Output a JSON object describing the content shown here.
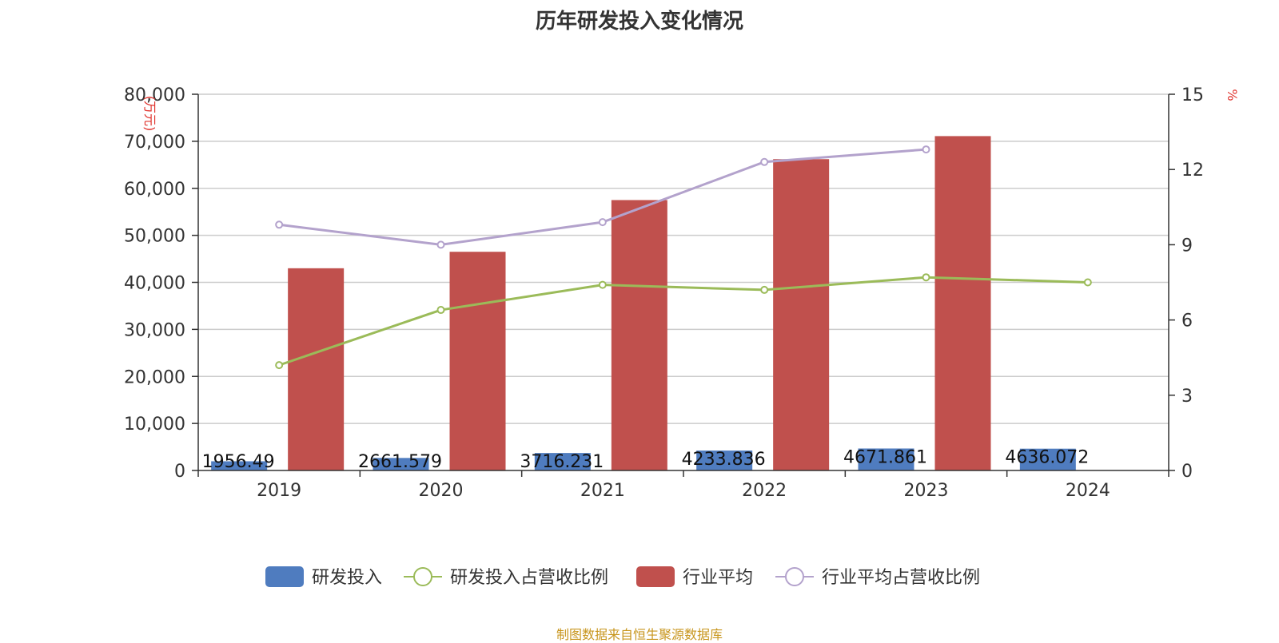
{
  "source": "制图数据来自恒生聚源数据库",
  "chart_data": {
    "type": "bar",
    "title": "历年研发投入变化情况",
    "categories": [
      "2019",
      "2020",
      "2021",
      "2022",
      "2023",
      "2024"
    ],
    "y_left": {
      "unit": "万元",
      "ylim": [
        0,
        80000
      ],
      "ticks": [
        "0",
        "10,000",
        "20,000",
        "30,000",
        "40,000",
        "50,000",
        "60,000",
        "70,000",
        "80,000"
      ]
    },
    "y_right": {
      "unit": "%",
      "ylim": [
        0,
        15
      ],
      "ticks": [
        "0",
        "3",
        "6",
        "9",
        "12",
        "15"
      ]
    },
    "grid": true,
    "legend_position": "bottom",
    "series": [
      {
        "name": "研发投入",
        "type": "bar",
        "axis": "left",
        "color": "#4f7cbf",
        "values": [
          1956.49,
          2661.579,
          3716.231,
          4233.836,
          4671.861,
          4636.072
        ],
        "labels": [
          "1956.49",
          "2661.579",
          "3716.231",
          "4233.836",
          "4671.861",
          "4636.072"
        ]
      },
      {
        "name": "研发投入占营收比例",
        "type": "line",
        "axis": "right",
        "color": "#9bbb59",
        "values": [
          4.2,
          6.4,
          7.4,
          7.2,
          7.7,
          7.5
        ]
      },
      {
        "name": "行业平均",
        "type": "bar",
        "axis": "left",
        "color": "#c0504d",
        "values": [
          43000,
          46500,
          57500,
          66200,
          71100,
          null
        ]
      },
      {
        "name": "行业平均占营收比例",
        "type": "line",
        "axis": "right",
        "color": "#b3a2cc",
        "values": [
          9.8,
          9.0,
          9.9,
          12.3,
          12.8,
          null
        ]
      }
    ]
  }
}
